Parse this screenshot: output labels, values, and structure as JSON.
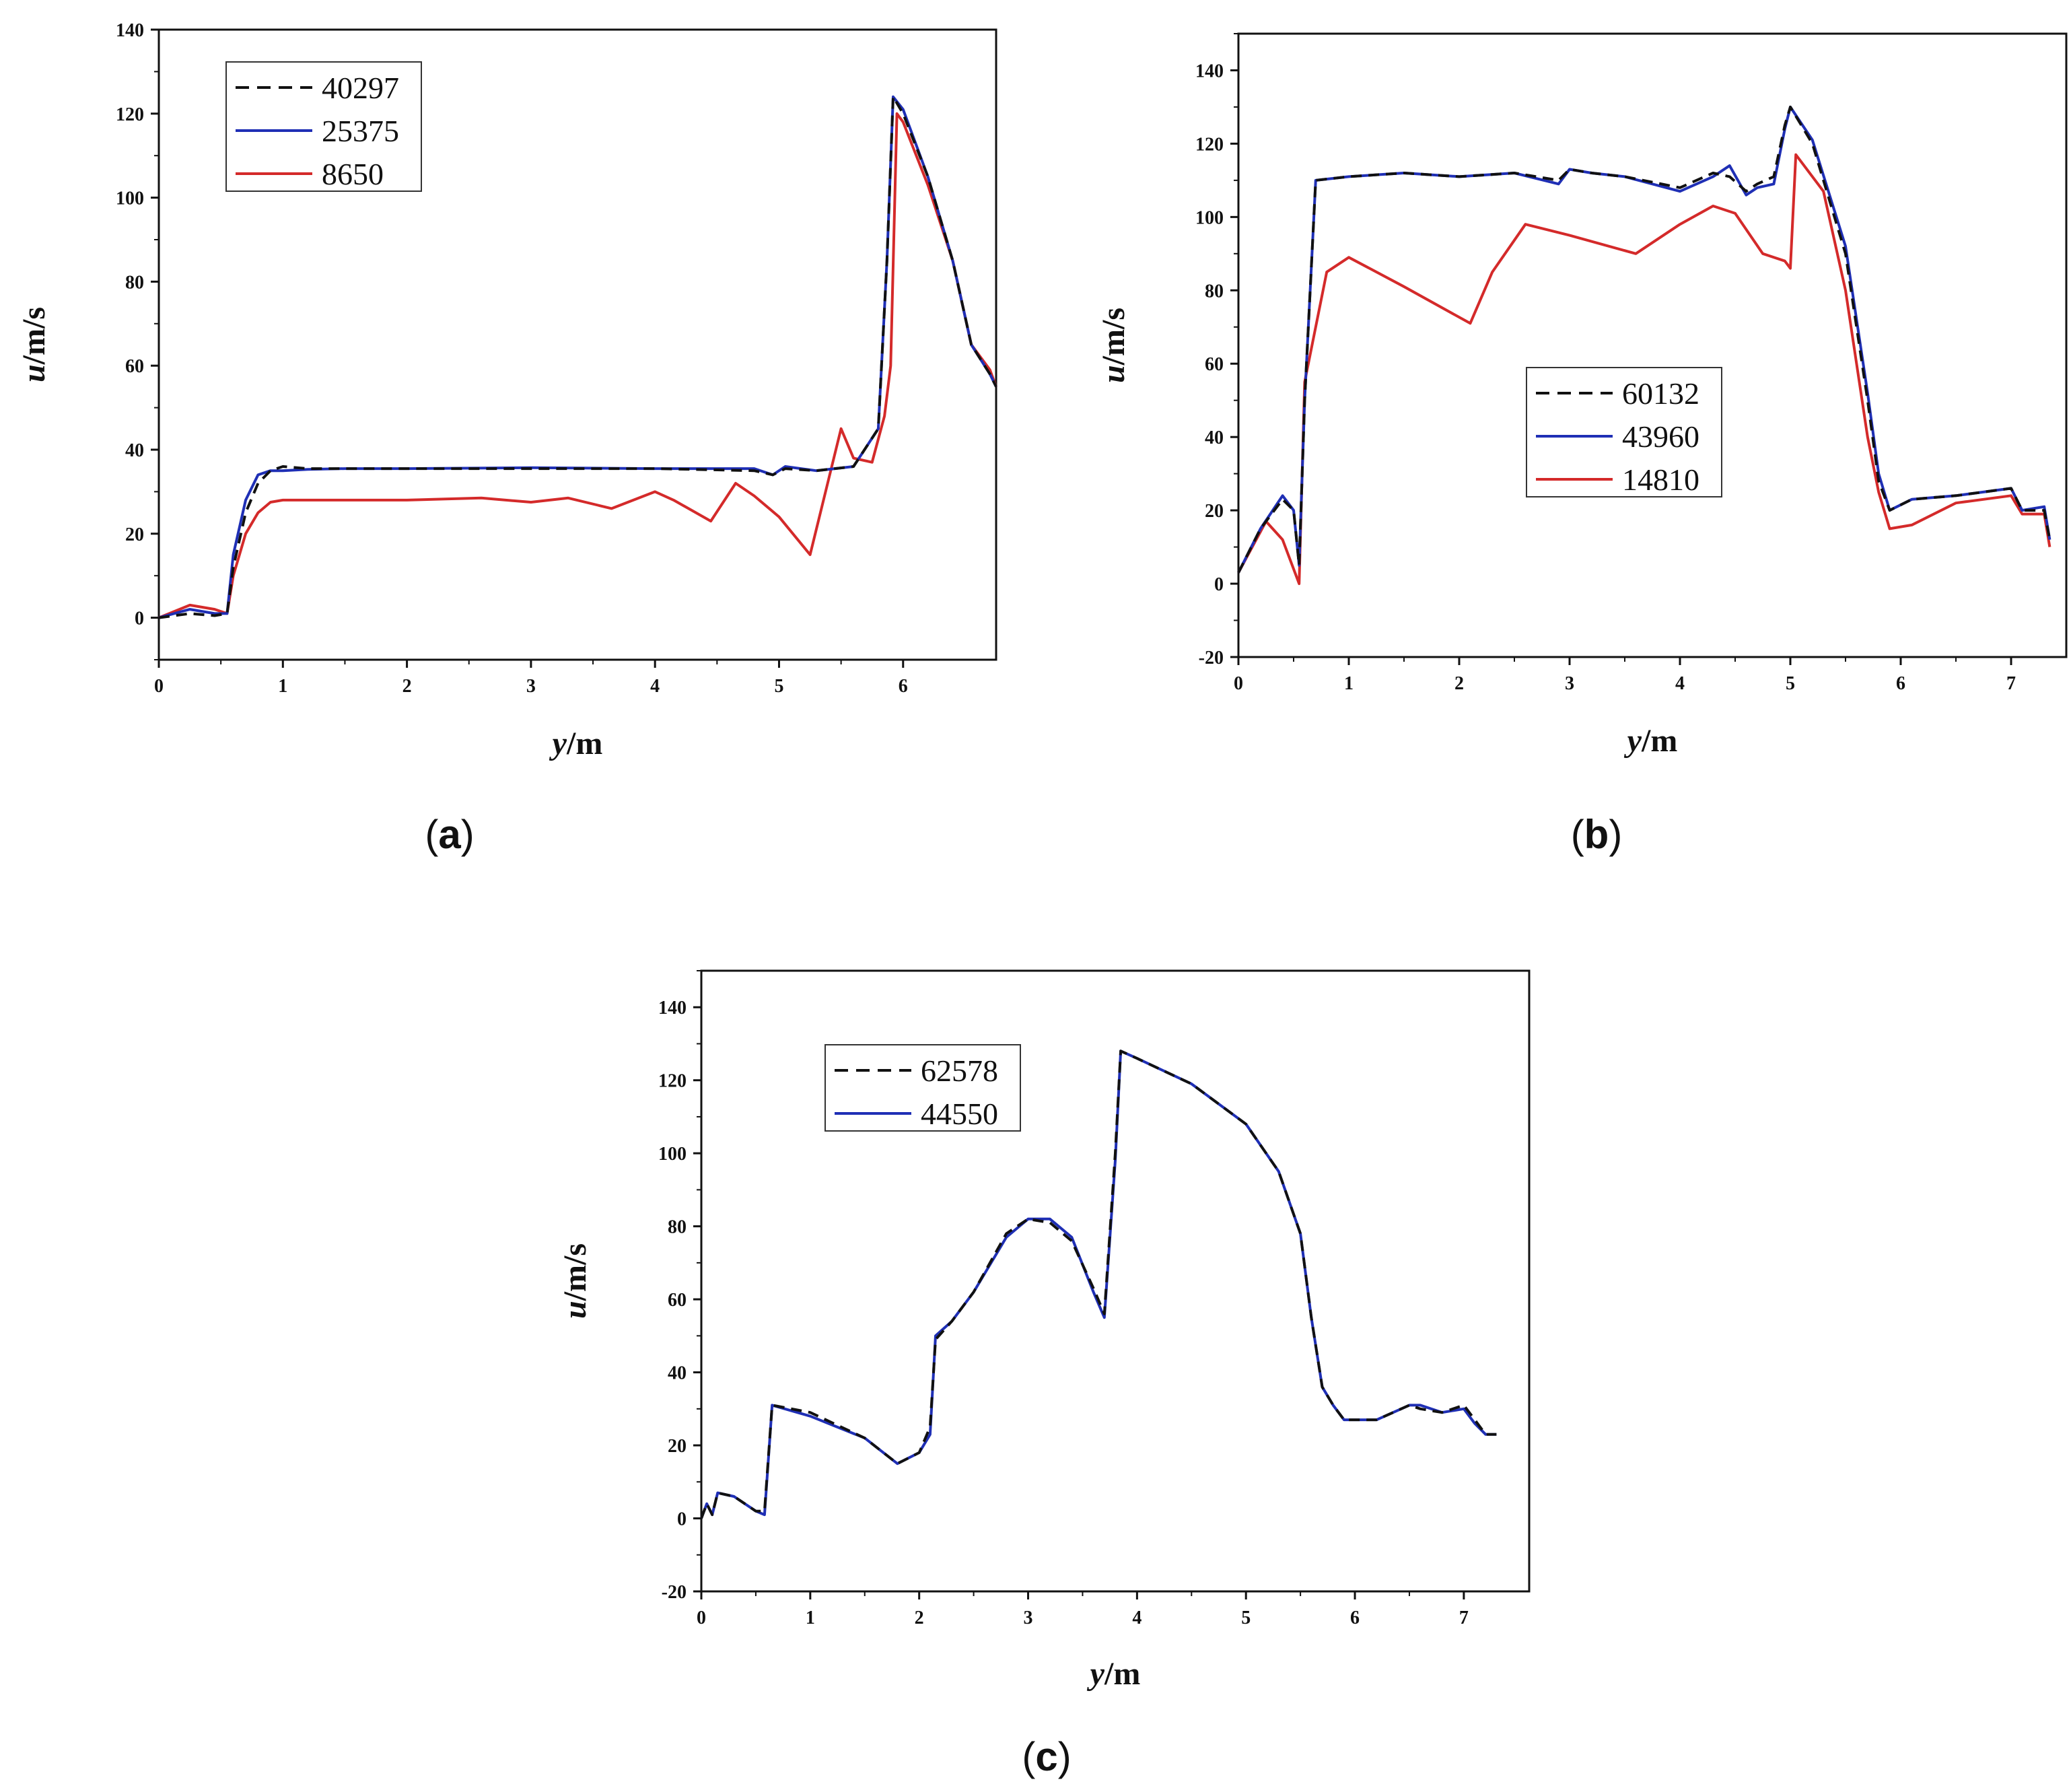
{
  "colors": {
    "dashed": "#111111",
    "blue": "#1f2fb5",
    "red": "#d42a2a",
    "axis": "#111111"
  },
  "chart_data": [
    {
      "type": "line",
      "panel": "a",
      "title": "",
      "xlabel_italic": "y",
      "xlabel_unit": "/m",
      "ylabel_italic": "u",
      "ylabel_unit": "/m/s",
      "xlim": [
        0,
        6.75
      ],
      "ylim": [
        -10,
        140
      ],
      "xticks": [
        0,
        1,
        2,
        3,
        4,
        5,
        6
      ],
      "yticks": [
        0,
        20,
        40,
        60,
        80,
        100,
        120,
        140
      ],
      "legend_position": "top-left",
      "series": [
        {
          "name": "40297",
          "style": "dashed",
          "color": "#111111",
          "x": [
            0,
            0.25,
            0.45,
            0.55,
            0.6,
            0.7,
            0.8,
            0.9,
            1.0,
            1.2,
            1.5,
            2.0,
            3.0,
            4.0,
            4.8,
            4.95,
            5.05,
            5.3,
            5.6,
            5.8,
            5.87,
            5.92,
            6.0,
            6.2,
            6.4,
            6.55,
            6.7,
            6.75
          ],
          "y": [
            0,
            1,
            0.5,
            1,
            12,
            25,
            32,
            35,
            36,
            35.5,
            35.5,
            35.5,
            35.5,
            35.5,
            35,
            34,
            35.5,
            35,
            36,
            45,
            85,
            124,
            120,
            105,
            85,
            65,
            58,
            55
          ]
        },
        {
          "name": "25375",
          "style": "solid",
          "color": "#1f2fb5",
          "x": [
            0,
            0.25,
            0.45,
            0.55,
            0.6,
            0.7,
            0.8,
            0.9,
            1.0,
            1.2,
            1.5,
            2.0,
            3.0,
            4.0,
            4.8,
            4.95,
            5.05,
            5.3,
            5.6,
            5.8,
            5.87,
            5.92,
            6.0,
            6.2,
            6.4,
            6.55,
            6.7,
            6.75
          ],
          "y": [
            0,
            2,
            1,
            1,
            15,
            28,
            34,
            35,
            35,
            35.3,
            35.5,
            35.5,
            35.7,
            35.5,
            35.5,
            34,
            36,
            35,
            36,
            45,
            85,
            124,
            121,
            105,
            85,
            65,
            58,
            55
          ]
        },
        {
          "name": "8650",
          "style": "solid",
          "color": "#d42a2a",
          "x": [
            0,
            0.25,
            0.45,
            0.55,
            0.6,
            0.7,
            0.8,
            0.9,
            1.0,
            1.5,
            2.0,
            2.6,
            3.0,
            3.3,
            3.65,
            4.0,
            4.15,
            4.45,
            4.65,
            4.8,
            5.0,
            5.25,
            5.4,
            5.5,
            5.6,
            5.75,
            5.85,
            5.9,
            5.95,
            6.0,
            6.2,
            6.4,
            6.55,
            6.7,
            6.75
          ],
          "y": [
            0,
            3,
            2,
            1,
            10,
            20,
            25,
            27.5,
            28,
            28,
            28,
            28.5,
            27.5,
            28.5,
            26,
            30,
            28,
            23,
            32,
            29,
            24,
            15,
            33,
            45,
            38,
            37,
            48,
            60,
            120,
            118,
            103,
            85,
            65,
            59,
            55
          ]
        }
      ]
    },
    {
      "type": "line",
      "panel": "b",
      "title": "",
      "xlabel_italic": "y",
      "xlabel_unit": "/m",
      "ylabel_italic": "u",
      "ylabel_unit": "/m/s",
      "xlim": [
        0,
        7.5
      ],
      "ylim": [
        -20,
        150
      ],
      "xticks": [
        0,
        1,
        2,
        3,
        4,
        5,
        6,
        7
      ],
      "yticks": [
        -20,
        0,
        20,
        40,
        60,
        80,
        100,
        120,
        140
      ],
      "legend_position": "center-right",
      "series": [
        {
          "name": "60132",
          "style": "dashed",
          "color": "#111111",
          "x": [
            0,
            0.2,
            0.4,
            0.5,
            0.55,
            0.6,
            0.7,
            1.0,
            1.5,
            2.0,
            2.5,
            2.9,
            3.0,
            3.2,
            3.5,
            4.0,
            4.3,
            4.45,
            4.6,
            4.7,
            4.85,
            4.95,
            5.0,
            5.2,
            5.5,
            5.7,
            5.8,
            5.9,
            6.1,
            6.5,
            7.0,
            7.1,
            7.3,
            7.35
          ],
          "y": [
            3,
            15,
            23,
            20,
            5,
            50,
            110,
            111,
            112,
            111,
            112,
            110,
            113,
            112,
            111,
            108,
            112,
            111,
            107,
            109,
            111,
            125,
            130,
            120,
            90,
            50,
            28,
            20,
            23,
            24,
            26,
            20,
            20,
            12
          ]
        },
        {
          "name": "43960",
          "style": "solid",
          "color": "#1f2fb5",
          "x": [
            0,
            0.2,
            0.4,
            0.5,
            0.55,
            0.6,
            0.7,
            1.0,
            1.5,
            2.0,
            2.5,
            2.9,
            3.0,
            3.2,
            3.5,
            4.0,
            4.3,
            4.45,
            4.6,
            4.7,
            4.85,
            4.95,
            5.0,
            5.2,
            5.5,
            5.7,
            5.8,
            5.9,
            6.1,
            6.5,
            7.0,
            7.1,
            7.3,
            7.35
          ],
          "y": [
            3,
            15,
            24,
            20,
            5,
            50,
            110,
            111,
            112,
            111,
            112,
            109,
            113,
            112,
            111,
            107,
            111,
            114,
            106,
            108,
            109,
            124,
            130,
            121,
            92,
            52,
            30,
            20,
            23,
            24,
            26,
            20,
            21,
            12
          ]
        },
        {
          "name": "14810",
          "style": "solid",
          "color": "#d42a2a",
          "x": [
            0,
            0.25,
            0.4,
            0.55,
            0.6,
            0.8,
            1.0,
            1.5,
            2.1,
            2.3,
            2.6,
            3.0,
            3.6,
            4.0,
            4.3,
            4.5,
            4.75,
            4.95,
            5.0,
            5.05,
            5.3,
            5.5,
            5.7,
            5.8,
            5.9,
            6.1,
            6.5,
            7.0,
            7.1,
            7.3,
            7.35
          ],
          "y": [
            3,
            17,
            12,
            0,
            55,
            85,
            89,
            81,
            71,
            85,
            98,
            95,
            90,
            98,
            103,
            101,
            90,
            88,
            86,
            117,
            107,
            80,
            40,
            25,
            15,
            16,
            22,
            24,
            19,
            19,
            10
          ]
        }
      ]
    },
    {
      "type": "line",
      "panel": "c",
      "title": "",
      "xlabel_italic": "y",
      "xlabel_unit": "/m",
      "ylabel_italic": "u",
      "ylabel_unit": "/m/s",
      "xlim": [
        0,
        7.6
      ],
      "ylim": [
        -20,
        150
      ],
      "xticks": [
        0,
        1,
        2,
        3,
        4,
        5,
        6,
        7
      ],
      "yticks": [
        -20,
        0,
        20,
        40,
        60,
        80,
        100,
        120,
        140
      ],
      "legend_position": "top-left",
      "series": [
        {
          "name": "62578",
          "style": "dashed",
          "color": "#111111",
          "x": [
            0,
            0.05,
            0.1,
            0.15,
            0.3,
            0.5,
            0.58,
            0.65,
            1.0,
            1.5,
            1.8,
            2.0,
            2.1,
            2.15,
            2.3,
            2.5,
            2.8,
            3.0,
            3.2,
            3.4,
            3.6,
            3.7,
            3.8,
            3.85,
            4.0,
            4.5,
            5.0,
            5.3,
            5.5,
            5.6,
            5.7,
            5.8,
            5.9,
            6.0,
            6.2,
            6.5,
            6.6,
            6.8,
            7.0,
            7.1,
            7.2,
            7.3
          ],
          "y": [
            0,
            4,
            1,
            7,
            6,
            2,
            2,
            31,
            29,
            22,
            15,
            18,
            25,
            49,
            54,
            62,
            78,
            82,
            81,
            76,
            63,
            56,
            100,
            128,
            126,
            119,
            108,
            95,
            78,
            55,
            36,
            31,
            27,
            27,
            27,
            31,
            30,
            29,
            31,
            27,
            23,
            23
          ]
        },
        {
          "name": "44550",
          "style": "solid",
          "color": "#1f2fb5",
          "x": [
            0,
            0.05,
            0.1,
            0.15,
            0.3,
            0.5,
            0.58,
            0.65,
            1.0,
            1.5,
            1.8,
            2.0,
            2.1,
            2.15,
            2.3,
            2.5,
            2.8,
            3.0,
            3.2,
            3.4,
            3.6,
            3.7,
            3.8,
            3.85,
            4.0,
            4.5,
            5.0,
            5.3,
            5.5,
            5.6,
            5.7,
            5.8,
            5.9,
            6.0,
            6.2,
            6.5,
            6.6,
            6.8,
            7.0,
            7.1,
            7.2,
            7.3
          ],
          "y": [
            0,
            4,
            1,
            7,
            6,
            2,
            1,
            31,
            28,
            22,
            15,
            18,
            23,
            50,
            54,
            62,
            77,
            82,
            82,
            77,
            62,
            55,
            98,
            128,
            126,
            119,
            108,
            95,
            78,
            55,
            36,
            31,
            27,
            27,
            27,
            31,
            31,
            29,
            30,
            26,
            23,
            23
          ]
        }
      ]
    }
  ],
  "panel_labels": [
    "a",
    "b",
    "c"
  ]
}
